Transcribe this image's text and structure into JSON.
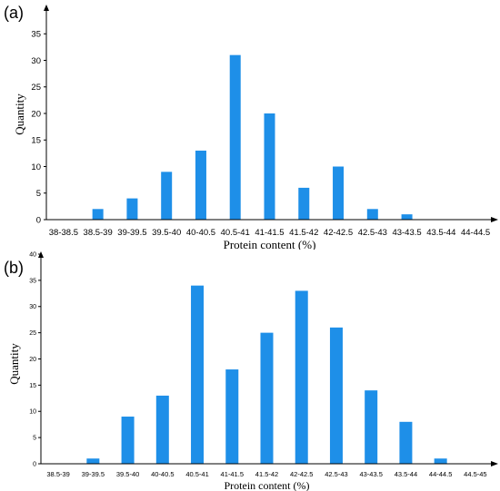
{
  "panels": [
    {
      "label": "(a)"
    },
    {
      "label": "(b)"
    }
  ],
  "colors": {
    "bar": "#1e8fe8",
    "axis": "#000000"
  },
  "chart_data": [
    {
      "type": "bar",
      "panel": "(a)",
      "xlabel": "Protein content (%)",
      "ylabel": "Quantity",
      "ylim": [
        0,
        40
      ],
      "yticks": [
        0,
        5,
        10,
        15,
        20,
        25,
        30,
        35
      ],
      "categories": [
        "38-38.5",
        "38.5-39",
        "39-39.5",
        "39.5-40",
        "40-40.5",
        "40.5-41",
        "41-41.5",
        "41.5-42",
        "42-42.5",
        "42.5-43",
        "43-43.5",
        "43.5-44",
        "44-44.5"
      ],
      "values": [
        0,
        2,
        4,
        9,
        13,
        31,
        20,
        6,
        10,
        2,
        1,
        0,
        0
      ]
    },
    {
      "type": "bar",
      "panel": "(b)",
      "xlabel": "Protein content (%)",
      "ylabel": "Quantity",
      "ylim": [
        0,
        40
      ],
      "yticks": [
        0,
        5,
        10,
        15,
        20,
        25,
        30,
        35,
        40
      ],
      "categories": [
        "38.5-39",
        "39-39.5",
        "39.5-40",
        "40-40.5",
        "40.5-41",
        "41-41.5",
        "41.5-42",
        "42-42.5",
        "42.5-43",
        "43-43.5",
        "43.5-44",
        "44-44.5",
        "44.5-45"
      ],
      "values": [
        0,
        1,
        9,
        13,
        34,
        18,
        25,
        33,
        26,
        14,
        8,
        1,
        0
      ]
    }
  ]
}
